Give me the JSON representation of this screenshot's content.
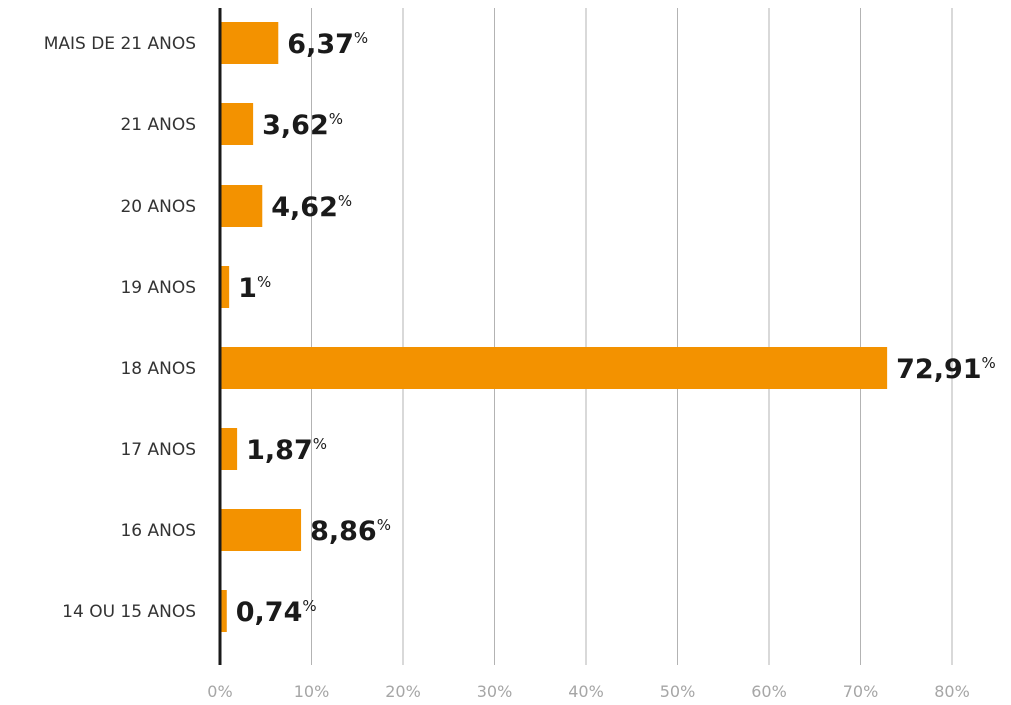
{
  "chart_data": {
    "type": "bar",
    "orientation": "horizontal",
    "categories": [
      "MAIS DE 21 ANOS",
      "21 ANOS",
      "20 ANOS",
      "19 ANOS",
      "18 ANOS",
      "17 ANOS",
      "16 ANOS",
      "14 OU 15 ANOS"
    ],
    "values": [
      6.37,
      3.62,
      4.62,
      1,
      72.91,
      1.87,
      8.86,
      0.74
    ],
    "value_labels": [
      "6,37",
      "3,62",
      "4,62",
      "1",
      "72,91",
      "1,87",
      "8,86",
      "0,74"
    ],
    "value_suffix": "%",
    "xlim": [
      0,
      80
    ],
    "xticks": [
      0,
      10,
      20,
      30,
      40,
      50,
      60,
      70,
      80
    ],
    "xtick_labels": [
      "0%",
      "10%",
      "20%",
      "30%",
      "40%",
      "50%",
      "60%",
      "70%",
      "80%"
    ],
    "title": "",
    "xlabel": "",
    "ylabel": "",
    "grid": "vertical",
    "legend": "none",
    "colors": {
      "bar": "#F39200",
      "gridline": "#b3b3b3",
      "axis": "#1a1a1a",
      "tick_text": "#a6a6a6",
      "category_text": "#333333",
      "value_text": "#1a1a1a"
    }
  }
}
